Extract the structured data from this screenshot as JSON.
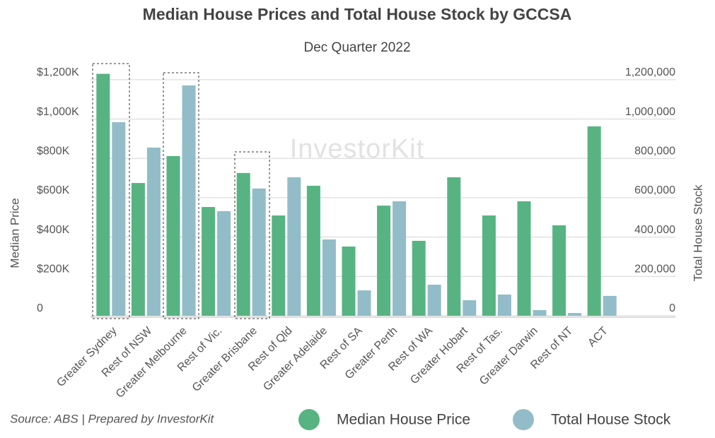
{
  "chart_data": {
    "type": "bar",
    "title": "Median House Prices and Total House Stock by GCCSA",
    "subtitle": "Dec Quarter 2022",
    "watermark": "InvestorKit",
    "source": "Source: ABS | Prepared by InvestorKit",
    "y_label": "Median Price",
    "y2_label": "Total House Stock",
    "categories": [
      "Greater Sydney",
      "Rest of NSW",
      "Greater Melbourne",
      "Rest of Vic.",
      "Greater Brisbane",
      "Rest of Qld",
      "Greater Adelaide",
      "Rest of SA",
      "Greater Perth",
      "Rest of WA",
      "Greater Hobart",
      "Rest of Tas.",
      "Greater Darwin",
      "Rest of NT",
      "ACT"
    ],
    "series": [
      {
        "name": "Median House Price",
        "color": "#57b482",
        "values": [
          1230000,
          675000,
          812000,
          553000,
          726000,
          510000,
          661000,
          352000,
          560000,
          381000,
          704000,
          510000,
          582000,
          460000,
          963000
        ]
      },
      {
        "name": "Total House Stock",
        "color": "#92bcc8",
        "axis": "y2",
        "values": [
          984000,
          855000,
          1171000,
          532000,
          647000,
          704000,
          388000,
          129000,
          582000,
          158000,
          79000,
          108000,
          29000,
          14000,
          101000
        ]
      }
    ],
    "ylim": [
      0,
      1300000
    ],
    "yticks": [
      0,
      {
        "value": 200000,
        "label": "$200K"
      },
      {
        "value": 400000,
        "label": "$400K"
      },
      {
        "value": 600000,
        "label": "$600K"
      },
      {
        "value": 800000,
        "label": "$800K"
      },
      {
        "value": 1000000,
        "label": "$1,000K"
      },
      {
        "value": 1200000,
        "label": "$1,200K"
      }
    ],
    "y2lim": [
      0,
      1300000
    ],
    "y2ticks": [
      0,
      {
        "value": 200000,
        "label": "200,000"
      },
      {
        "value": 400000,
        "label": "400,000"
      },
      {
        "value": 600000,
        "label": "600,000"
      },
      {
        "value": 800000,
        "label": "800,000"
      },
      {
        "value": 1000000,
        "label": "1,000,000"
      },
      {
        "value": 1200000,
        "label": "1,200,000"
      }
    ],
    "grid": true
  }
}
